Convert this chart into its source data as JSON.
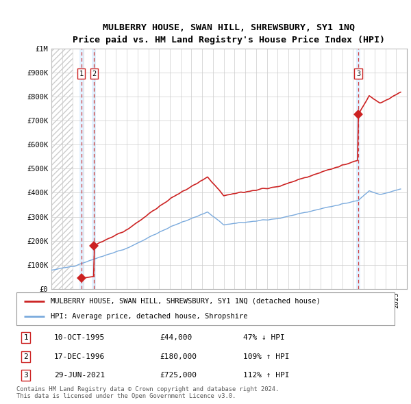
{
  "title": "MULBERRY HOUSE, SWAN HILL, SHREWSBURY, SY1 1NQ",
  "subtitle": "Price paid vs. HM Land Registry's House Price Index (HPI)",
  "yticks": [
    0,
    100000,
    200000,
    300000,
    400000,
    500000,
    600000,
    700000,
    800000,
    900000,
    1000000
  ],
  "ytick_labels": [
    "£0",
    "£100K",
    "£200K",
    "£300K",
    "£400K",
    "£500K",
    "£600K",
    "£700K",
    "£800K",
    "£900K",
    "£1M"
  ],
  "xmin": 1993,
  "xmax": 2026,
  "ymin": 0,
  "ymax": 1000000,
  "sale_dates": [
    1995.78,
    1996.96,
    2021.49
  ],
  "sale_prices": [
    44000,
    180000,
    725000
  ],
  "sale_labels": [
    "1",
    "2",
    "3"
  ],
  "hpi_color": "#7aaadd",
  "sale_line_color": "#cc2222",
  "sale_dot_color": "#cc2222",
  "vline_color": "#cc2222",
  "legend_sale_label": "MULBERRY HOUSE, SWAN HILL, SHREWSBURY, SY1 1NQ (detached house)",
  "legend_hpi_label": "HPI: Average price, detached house, Shropshire",
  "table_entries": [
    {
      "num": "1",
      "date": "10-OCT-1995",
      "price": "£44,000",
      "pct": "47% ↓ HPI"
    },
    {
      "num": "2",
      "date": "17-DEC-1996",
      "price": "£180,000",
      "pct": "109% ↑ HPI"
    },
    {
      "num": "3",
      "date": "29-JUN-2021",
      "price": "£725,000",
      "pct": "112% ↑ HPI"
    }
  ],
  "footnote": "Contains HM Land Registry data © Crown copyright and database right 2024.\nThis data is licensed under the Open Government Licence v3.0.",
  "grid_color": "#cccccc",
  "shaded_band_color": "#ddeeff",
  "hatch_color": "#cccccc"
}
